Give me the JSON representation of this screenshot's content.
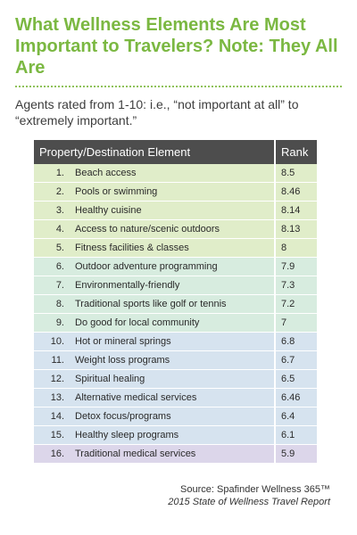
{
  "title": "What Wellness Elements Are Most Important to Travelers? Note: They All Are",
  "subtitle": "Agents rated from 1-10: i.e., “not important at all” to “extremely important.”",
  "table": {
    "headers": [
      "Property/Destination Element",
      "Rank"
    ],
    "rows": [
      {
        "num": "1.",
        "name": "Beach access",
        "rank": "8.5",
        "color": "#e0edc9"
      },
      {
        "num": "2.",
        "name": "Pools or swimming",
        "rank": "8.46",
        "color": "#e0edc9"
      },
      {
        "num": "3.",
        "name": "Healthy cuisine",
        "rank": "8.14",
        "color": "#e0edc9"
      },
      {
        "num": "4.",
        "name": "Access to nature/scenic outdoors",
        "rank": "8.13",
        "color": "#e0edc9"
      },
      {
        "num": "5.",
        "name": "Fitness facilities & classes",
        "rank": "8",
        "color": "#e0edc9"
      },
      {
        "num": "6.",
        "name": "Outdoor adventure programming",
        "rank": "7.9",
        "color": "#d7ecdf"
      },
      {
        "num": "7.",
        "name": "Environmentally-friendly",
        "rank": "7.3",
        "color": "#d7ecdf"
      },
      {
        "num": "8.",
        "name": "Traditional sports like golf or tennis",
        "rank": "7.2",
        "color": "#d7ecdf"
      },
      {
        "num": "9.",
        "name": "Do good for local community",
        "rank": "7",
        "color": "#d7ecdf"
      },
      {
        "num": "10.",
        "name": "Hot or mineral springs",
        "rank": "6.8",
        "color": "#d6e3ef"
      },
      {
        "num": "11.",
        "name": "Weight loss programs",
        "rank": "6.7",
        "color": "#d6e3ef"
      },
      {
        "num": "12.",
        "name": "Spiritual healing",
        "rank": "6.5",
        "color": "#d6e3ef"
      },
      {
        "num": "13.",
        "name": "Alternative medical services",
        "rank": "6.46",
        "color": "#d6e3ef"
      },
      {
        "num": "14.",
        "name": "Detox focus/programs",
        "rank": "6.4",
        "color": "#d6e3ef"
      },
      {
        "num": "15.",
        "name": "Healthy sleep programs",
        "rank": "6.1",
        "color": "#d6e3ef"
      },
      {
        "num": "16.",
        "name": "Traditional medical services",
        "rank": "5.9",
        "color": "#dcd6ea"
      }
    ]
  },
  "source": {
    "line1": "Source: Spafinder Wellness 365™",
    "line2": "2015 State of Wellness Travel Report"
  }
}
